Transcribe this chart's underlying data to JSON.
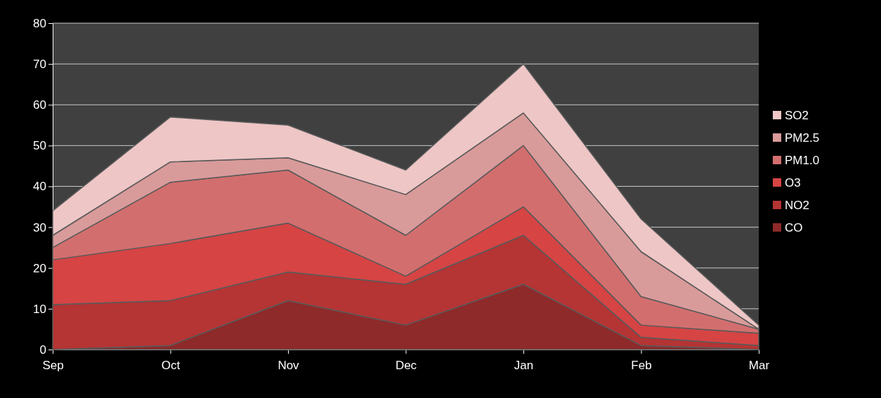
{
  "chart_data": {
    "type": "area",
    "stacked": true,
    "categories": [
      "Sep",
      "Oct",
      "Nov",
      "Dec",
      "Jan",
      "Feb",
      "Mar"
    ],
    "series": [
      {
        "name": "CO",
        "color": "#8e2a2a",
        "values": [
          0,
          1,
          12,
          6,
          16,
          1,
          0
        ]
      },
      {
        "name": "NO2",
        "color": "#b53434",
        "values": [
          11,
          11,
          7,
          10,
          12,
          2,
          1
        ]
      },
      {
        "name": "O3",
        "color": "#d64444",
        "values": [
          11,
          14,
          12,
          2,
          7,
          3,
          3
        ]
      },
      {
        "name": "PM1.0",
        "color": "#d36e6e",
        "values": [
          3,
          15,
          13,
          10,
          15,
          7,
          1
        ]
      },
      {
        "name": "PM2.5",
        "color": "#d99a9a",
        "values": [
          3,
          5,
          3,
          10,
          8,
          11,
          0
        ]
      },
      {
        "name": "SO2",
        "color": "#eec6c6",
        "values": [
          6,
          11,
          8,
          6,
          12,
          8,
          1
        ]
      }
    ],
    "ylim": [
      0,
      80
    ],
    "yticks": [
      0,
      10,
      20,
      30,
      40,
      50,
      60,
      70,
      80
    ],
    "grid": "y",
    "legend": "right"
  }
}
